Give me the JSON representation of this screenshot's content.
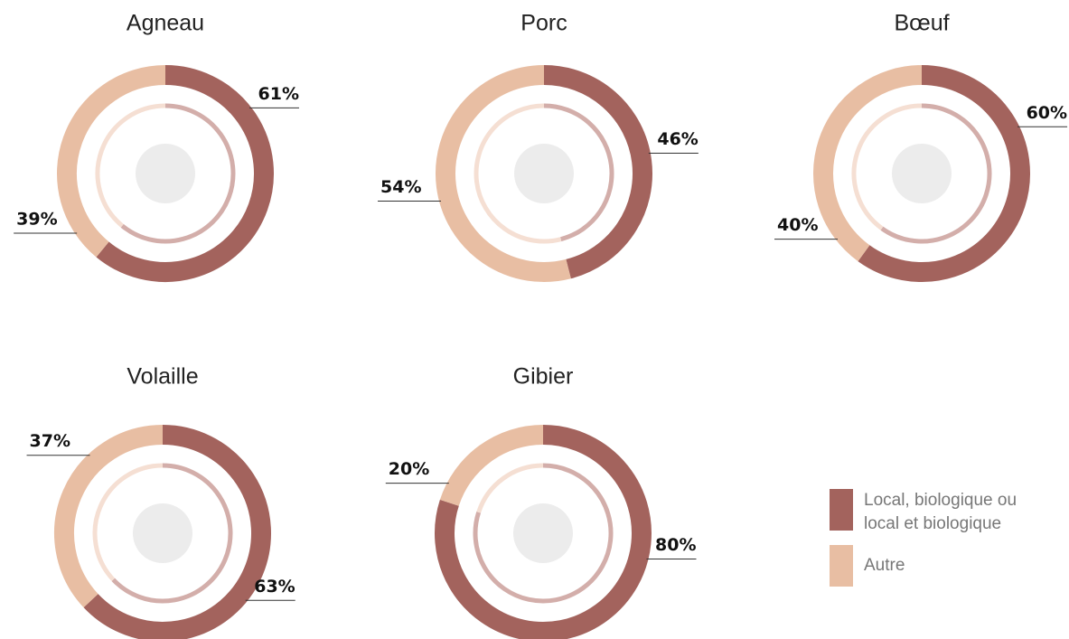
{
  "chart_data": {
    "type": "donut",
    "categories": [
      "Local, biologique ou local et biologique",
      "Autre"
    ],
    "colors": [
      "#a3635d",
      "#e8bea3"
    ],
    "charts": [
      {
        "title": "Agneau",
        "values": [
          61,
          39
        ],
        "value_labels": [
          "61%",
          "39%"
        ]
      },
      {
        "title": "Porc",
        "values": [
          46,
          54
        ],
        "value_labels": [
          "46%",
          "54%"
        ]
      },
      {
        "title": "Bœuf",
        "values": [
          60,
          40
        ],
        "value_labels": [
          "60%",
          "40%"
        ]
      },
      {
        "title": "Volaille",
        "values": [
          63,
          37
        ],
        "value_labels": [
          "63%",
          "37%"
        ]
      },
      {
        "title": "Gibier",
        "values": [
          80,
          20
        ],
        "value_labels": [
          "80%",
          "20%"
        ]
      }
    ]
  }
}
